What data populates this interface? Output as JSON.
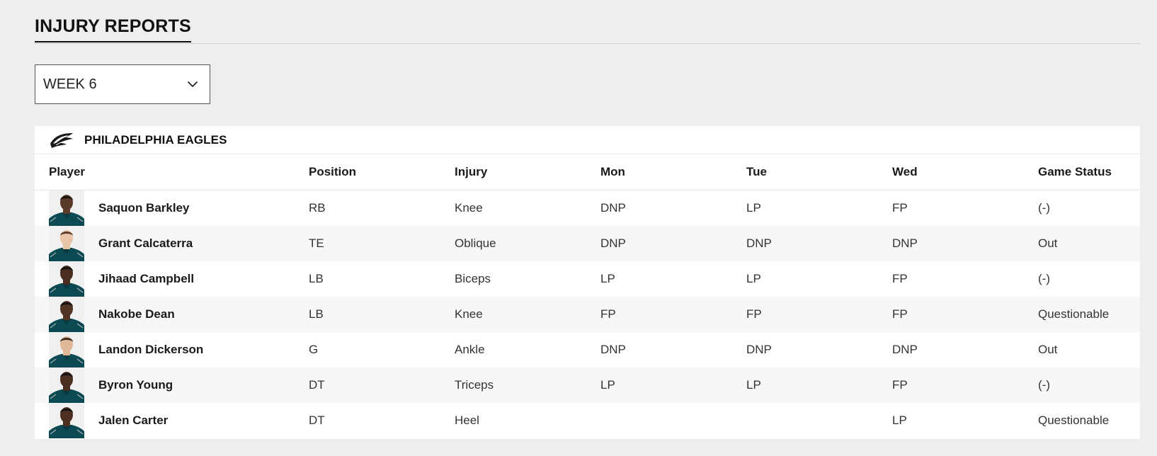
{
  "section": {
    "title": "INJURY REPORTS"
  },
  "week_select": {
    "selected": "WEEK 6",
    "icon": "chevron-down-icon"
  },
  "team": {
    "name": "PHILADELPHIA EAGLES",
    "logo_icon": "eagles-logo-icon",
    "colors": {
      "jersey": "#0b4a52",
      "jersey_dark": "#083a40",
      "accent": "#a5acaf"
    }
  },
  "table": {
    "headers": {
      "player": "Player",
      "position": "Position",
      "injury": "Injury",
      "mon": "Mon",
      "tue": "Tue",
      "wed": "Wed",
      "game_status": "Game Status"
    },
    "rows": [
      {
        "player": "Saquon Barkley",
        "position": "RB",
        "injury": "Knee",
        "mon": "DNP",
        "tue": "LP",
        "wed": "FP",
        "game_status": "(-)",
        "skin": "#5a3a28",
        "hair": "#1a1410"
      },
      {
        "player": "Grant Calcaterra",
        "position": "TE",
        "injury": "Oblique",
        "mon": "DNP",
        "tue": "DNP",
        "wed": "DNP",
        "game_status": "Out",
        "skin": "#e8c4a8",
        "hair": "#5a3c28"
      },
      {
        "player": "Jihaad Campbell",
        "position": "LB",
        "injury": "Biceps",
        "mon": "LP",
        "tue": "LP",
        "wed": "FP",
        "game_status": "(-)",
        "skin": "#4a2e20",
        "hair": "#141010"
      },
      {
        "player": "Nakobe Dean",
        "position": "LB",
        "injury": "Knee",
        "mon": "FP",
        "tue": "FP",
        "wed": "FP",
        "game_status": "Questionable",
        "skin": "#523424",
        "hair": "#141010"
      },
      {
        "player": "Landon Dickerson",
        "position": "G",
        "injury": "Ankle",
        "mon": "DNP",
        "tue": "DNP",
        "wed": "DNP",
        "game_status": "Out",
        "skin": "#e0b898",
        "hair": "#3a2a1c"
      },
      {
        "player": "Byron Young",
        "position": "DT",
        "injury": "Triceps",
        "mon": "LP",
        "tue": "LP",
        "wed": "FP",
        "game_status": "(-)",
        "skin": "#4a2e20",
        "hair": "#141010"
      },
      {
        "player": "Jalen Carter",
        "position": "DT",
        "injury": "Heel",
        "mon": "",
        "tue": "",
        "wed": "LP",
        "game_status": "Questionable",
        "skin": "#4e3022",
        "hair": "#141010"
      }
    ]
  }
}
